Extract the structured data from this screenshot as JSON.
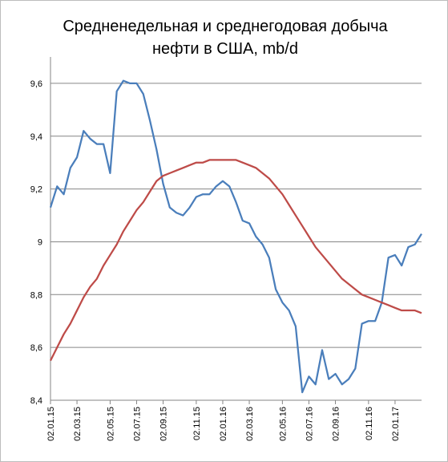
{
  "chart_data": {
    "type": "line",
    "title": "Средненедельная и среднегодовая  добыча\nнефти в США, mb/d",
    "categories": [
      "02.01.15",
      null,
      null,
      null,
      "02.03.15",
      null,
      null,
      null,
      null,
      "02.05.15",
      null,
      null,
      null,
      "02.07.15",
      null,
      null,
      null,
      "02.09.15",
      null,
      null,
      null,
      null,
      "02.11.15",
      null,
      null,
      null,
      "02.01.16",
      null,
      null,
      null,
      "02.03.16",
      null,
      null,
      null,
      null,
      "02.05.16",
      null,
      null,
      null,
      "02.07.16",
      null,
      null,
      null,
      "02.09.16",
      null,
      null,
      null,
      null,
      "02.11.16",
      null,
      null,
      null,
      "02.01.17",
      null,
      null,
      null,
      null
    ],
    "series": [
      {
        "color": "#4a7ebb",
        "values": [
          9.13,
          9.21,
          9.18,
          9.28,
          9.32,
          9.42,
          9.39,
          9.37,
          9.37,
          9.26,
          9.57,
          9.61,
          9.6,
          9.6,
          9.56,
          9.46,
          9.35,
          9.22,
          9.13,
          9.11,
          9.1,
          9.13,
          9.17,
          9.18,
          9.18,
          9.21,
          9.23,
          9.21,
          9.15,
          9.08,
          9.07,
          9.02,
          8.99,
          8.94,
          8.82,
          8.77,
          8.74,
          8.68,
          8.43,
          8.49,
          8.46,
          8.59,
          8.48,
          8.5,
          8.46,
          8.48,
          8.52,
          8.69,
          8.7,
          8.7,
          8.77,
          8.94,
          8.95,
          8.91,
          8.98,
          8.99,
          9.03
        ]
      },
      {
        "color": "#be4b48",
        "values": [
          8.55,
          8.6,
          8.65,
          8.69,
          8.74,
          8.79,
          8.83,
          8.86,
          8.91,
          8.95,
          8.99,
          9.04,
          9.08,
          9.12,
          9.15,
          9.19,
          9.23,
          9.25,
          9.26,
          9.27,
          9.28,
          9.29,
          9.3,
          9.3,
          9.31,
          9.31,
          9.31,
          9.31,
          9.31,
          9.3,
          9.29,
          9.28,
          9.26,
          9.24,
          9.21,
          9.18,
          9.14,
          9.1,
          9.06,
          9.02,
          8.98,
          8.95,
          8.92,
          8.89,
          8.86,
          8.84,
          8.82,
          8.8,
          8.79,
          8.78,
          8.77,
          8.76,
          8.75,
          8.74,
          8.74,
          8.74,
          8.73
        ]
      }
    ],
    "ylim": [
      8.4,
      9.7
    ],
    "yticks": [
      {
        "value": 8.4,
        "label": "8,4"
      },
      {
        "value": 8.6,
        "label": "8,6"
      },
      {
        "value": 8.8,
        "label": "8,8"
      },
      9,
      {
        "value": 9.2,
        "label": "9,2"
      },
      {
        "value": 9.4,
        "label": "9,4"
      },
      {
        "value": 9.6,
        "label": "9,6"
      }
    ],
    "grid": true
  }
}
